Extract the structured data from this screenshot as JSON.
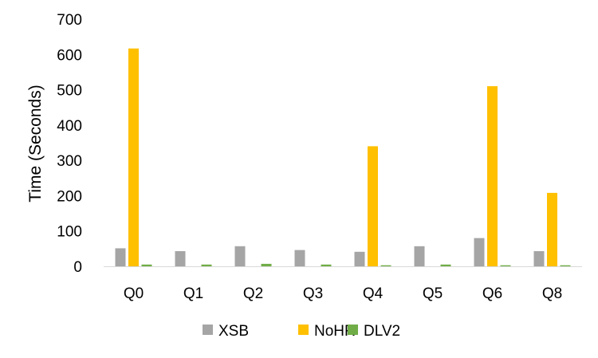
{
  "chart_data": {
    "type": "bar",
    "title": "",
    "xlabel": "",
    "ylabel": "Time (Seconds)",
    "ylim": [
      0,
      700
    ],
    "yticks": [
      0,
      100,
      200,
      300,
      400,
      500,
      600,
      700
    ],
    "grid": false,
    "legend_position": "bottom",
    "categories": [
      "Q0",
      "Q1",
      "Q2",
      "Q3",
      "Q4",
      "Q5",
      "Q6",
      "Q8"
    ],
    "series": [
      {
        "name": "XSB",
        "color": "#a5a5a5",
        "values": [
          51,
          43,
          57,
          46,
          41,
          57,
          80,
          43
        ]
      },
      {
        "name": "NoHR",
        "color": "#ffc000",
        "values": [
          617,
          0,
          0,
          0,
          340,
          0,
          510,
          208
        ]
      },
      {
        "name": "DLV2",
        "color": "#70ad47",
        "values": [
          5,
          5,
          7,
          5,
          3,
          5,
          3,
          3
        ]
      }
    ]
  }
}
